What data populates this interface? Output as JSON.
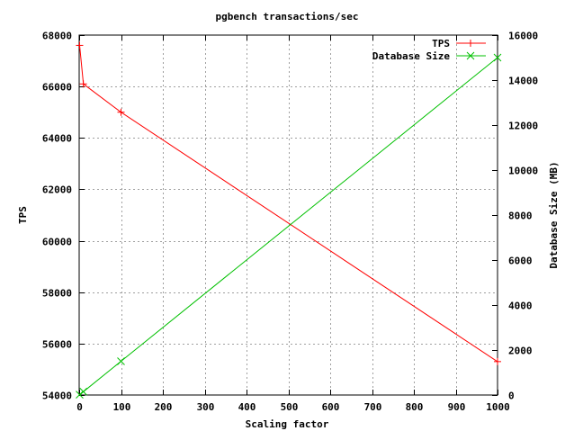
{
  "chart_data": {
    "type": "line",
    "title": "pgbench transactions/sec",
    "xlabel": "Scaling factor",
    "ylabel": "TPS",
    "y2label": "Database Size (MB)",
    "xlim": [
      0,
      1000
    ],
    "ylim": [
      54000,
      68000
    ],
    "y2lim": [
      0,
      16000
    ],
    "x_ticks": [
      0,
      100,
      200,
      300,
      400,
      500,
      600,
      700,
      800,
      900,
      1000
    ],
    "y_ticks": [
      54000,
      56000,
      58000,
      60000,
      62000,
      64000,
      66000,
      68000
    ],
    "y2_ticks": [
      0,
      2000,
      4000,
      6000,
      8000,
      10000,
      12000,
      14000,
      16000
    ],
    "grid": true,
    "legend_position": "top-right",
    "series": [
      {
        "name": "TPS",
        "axis": "left",
        "color": "#ff0000",
        "marker": "plus",
        "x": [
          1,
          10,
          100,
          1000
        ],
        "values": [
          67600,
          66100,
          65000,
          55300
        ]
      },
      {
        "name": "Database Size",
        "axis": "right",
        "color": "#00c000",
        "marker": "cross",
        "x": [
          1,
          10,
          100,
          1000
        ],
        "values": [
          16,
          150,
          1500,
          15000
        ]
      }
    ]
  }
}
